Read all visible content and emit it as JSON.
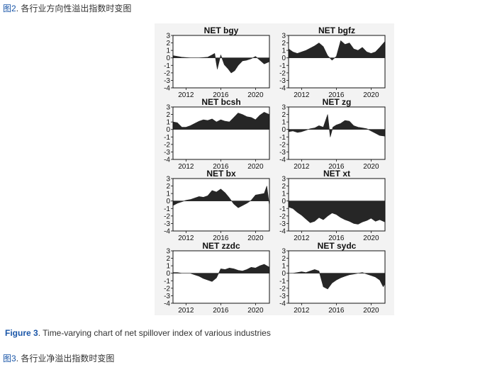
{
  "caption_top": {
    "fig_ref": "图2",
    "text": ". 各行业方向性溢出指数时变图"
  },
  "caption_en": {
    "fig_label": "Figure 3",
    "text": ". Time-varying chart of net spillover index of various industries"
  },
  "caption_bottom": {
    "fig_ref": "图3",
    "text": ". 各行业净溢出指数时变图"
  },
  "colors": {
    "fill": "#262626",
    "caption_link": "#1a56a8",
    "figure_bg": "#f3f3f3"
  },
  "chart_data": [
    {
      "type": "area",
      "title": "NET bgy",
      "x": [
        2010.5,
        2011.5,
        2012.5,
        2013.5,
        2014.5,
        2015.0,
        2015.3,
        2015.6,
        2016.0,
        2016.4,
        2016.8,
        2017.2,
        2017.6,
        2018.0,
        2018.5,
        2019.0,
        2019.5,
        2020.0,
        2020.5,
        2021.0,
        2021.6
      ],
      "values": [
        0.3,
        0.1,
        0.0,
        0.0,
        0.1,
        0.4,
        0.6,
        -1.5,
        0.4,
        -0.9,
        -1.4,
        -2.0,
        -1.7,
        -1.0,
        -0.4,
        -0.3,
        -0.1,
        0.2,
        -0.3,
        -0.8,
        -0.5
      ],
      "xlim": [
        2010.5,
        2021.6
      ],
      "ylim": [
        -4,
        3
      ],
      "xticks": [
        "2012",
        "2016",
        "2020"
      ],
      "yticks": [
        "3",
        "2",
        "1",
        "0",
        "-1",
        "-2",
        "-3",
        "-4"
      ]
    },
    {
      "type": "area",
      "title": "NET bgfz",
      "x": [
        2010.5,
        2011.0,
        2011.5,
        2012.0,
        2012.5,
        2013.0,
        2013.5,
        2014.0,
        2014.5,
        2015.0,
        2015.5,
        2016.0,
        2016.5,
        2017.0,
        2017.5,
        2018.0,
        2018.5,
        2019.0,
        2019.5,
        2020.0,
        2020.5,
        2021.0,
        2021.6
      ],
      "values": [
        1.2,
        0.8,
        0.6,
        0.8,
        1.0,
        1.3,
        1.6,
        2.0,
        1.5,
        0.3,
        -0.3,
        0.2,
        2.3,
        1.8,
        2.0,
        1.2,
        1.0,
        1.4,
        0.8,
        0.6,
        0.8,
        1.4,
        2.2
      ],
      "xlim": [
        2010.5,
        2021.6
      ],
      "ylim": [
        -4,
        3
      ],
      "xticks": [
        "2012",
        "2016",
        "2020"
      ],
      "yticks": [
        "3",
        "2",
        "1",
        "0",
        "-1",
        "-2",
        "-3",
        "-4"
      ]
    },
    {
      "type": "area",
      "title": "NET bcsh",
      "x": [
        2010.5,
        2011.0,
        2011.5,
        2012.0,
        2012.5,
        2013.0,
        2013.5,
        2014.0,
        2014.5,
        2015.0,
        2015.5,
        2016.0,
        2016.5,
        2017.0,
        2017.5,
        2018.0,
        2018.5,
        2019.0,
        2019.5,
        2020.0,
        2020.5,
        2021.0,
        2021.6
      ],
      "values": [
        1.0,
        0.9,
        0.3,
        0.3,
        0.5,
        0.8,
        1.1,
        1.3,
        1.2,
        1.4,
        1.0,
        1.3,
        1.1,
        1.0,
        1.6,
        2.2,
        2.0,
        1.7,
        1.6,
        1.3,
        1.9,
        2.3,
        2.0
      ],
      "xlim": [
        2010.5,
        2021.6
      ],
      "ylim": [
        -4,
        3
      ],
      "xticks": [
        "2012",
        "2016",
        "2020"
      ],
      "yticks": [
        "3",
        "2",
        "1",
        "0",
        "-1",
        "-2",
        "-3",
        "-4"
      ]
    },
    {
      "type": "area",
      "title": "NET zg",
      "x": [
        2010.5,
        2011.0,
        2011.5,
        2012.0,
        2012.5,
        2013.0,
        2013.5,
        2014.0,
        2014.5,
        2015.0,
        2015.3,
        2015.6,
        2016.0,
        2016.5,
        2017.0,
        2017.5,
        2018.0,
        2018.5,
        2019.0,
        2019.5,
        2020.0,
        2020.5,
        2021.0,
        2021.6
      ],
      "values": [
        -0.3,
        -0.2,
        -0.4,
        -0.3,
        -0.1,
        0.1,
        0.2,
        0.5,
        0.3,
        2.0,
        -1.0,
        0.3,
        0.6,
        0.8,
        1.2,
        1.1,
        0.5,
        0.3,
        0.2,
        0.1,
        -0.2,
        -0.5,
        -0.8,
        -0.9
      ],
      "xlim": [
        2010.5,
        2021.6
      ],
      "ylim": [
        -4,
        3
      ],
      "xticks": [
        "2012",
        "2016",
        "2020"
      ],
      "yticks": [
        "3",
        "2",
        "1",
        "0",
        "-1",
        "-2",
        "-3",
        "-4"
      ]
    },
    {
      "type": "area",
      "title": "NET bx",
      "x": [
        2010.5,
        2011.0,
        2011.5,
        2012.0,
        2012.5,
        2013.0,
        2013.5,
        2014.0,
        2014.5,
        2015.0,
        2015.5,
        2016.0,
        2016.5,
        2017.0,
        2017.5,
        2018.0,
        2018.5,
        2019.0,
        2019.5,
        2020.0,
        2020.5,
        2021.0,
        2021.3,
        2021.6
      ],
      "values": [
        -0.6,
        -0.3,
        -0.1,
        0.1,
        0.2,
        0.4,
        0.6,
        0.5,
        0.7,
        1.4,
        1.2,
        1.6,
        1.1,
        0.4,
        -0.4,
        -0.9,
        -0.6,
        -0.3,
        0.1,
        0.8,
        0.9,
        1.0,
        2.0,
        -0.6
      ],
      "xlim": [
        2010.5,
        2021.6
      ],
      "ylim": [
        -4,
        3
      ],
      "xticks": [
        "2012",
        "2016",
        "2020"
      ],
      "yticks": [
        "3",
        "2",
        "1",
        "0",
        "-1",
        "-2",
        "-3",
        "-4"
      ]
    },
    {
      "type": "area",
      "title": "NET xt",
      "x": [
        2010.5,
        2011.0,
        2011.5,
        2012.0,
        2012.5,
        2013.0,
        2013.5,
        2014.0,
        2014.5,
        2015.0,
        2015.5,
        2016.0,
        2016.5,
        2017.0,
        2017.5,
        2018.0,
        2018.5,
        2019.0,
        2019.5,
        2020.0,
        2020.5,
        2021.0,
        2021.6
      ],
      "values": [
        -0.8,
        -1.0,
        -1.5,
        -1.9,
        -2.4,
        -2.9,
        -2.7,
        -2.2,
        -2.5,
        -2.0,
        -1.6,
        -1.8,
        -2.2,
        -2.5,
        -2.7,
        -3.0,
        -3.1,
        -2.8,
        -2.6,
        -2.3,
        -2.7,
        -2.5,
        -2.8
      ],
      "xlim": [
        2010.5,
        2021.6
      ],
      "ylim": [
        -4,
        3
      ],
      "xticks": [
        "2012",
        "2016",
        "2020"
      ],
      "yticks": [
        "3",
        "2",
        "1",
        "0",
        "-1",
        "-2",
        "-3",
        "-4"
      ]
    },
    {
      "type": "area",
      "title": "NET zzdc",
      "x": [
        2010.5,
        2011.0,
        2011.5,
        2012.0,
        2012.5,
        2013.0,
        2013.5,
        2014.0,
        2014.5,
        2015.0,
        2015.5,
        2016.0,
        2016.5,
        2017.0,
        2017.5,
        2018.0,
        2018.5,
        2019.0,
        2019.5,
        2020.0,
        2020.5,
        2021.0,
        2021.6
      ],
      "values": [
        0.1,
        0.1,
        0.0,
        0.0,
        0.0,
        -0.2,
        -0.4,
        -0.7,
        -0.9,
        -1.1,
        -0.6,
        0.6,
        0.5,
        0.7,
        0.6,
        0.4,
        0.3,
        0.5,
        0.8,
        0.7,
        1.0,
        1.2,
        0.8
      ],
      "xlim": [
        2010.5,
        2021.6
      ],
      "ylim": [
        -4,
        3
      ],
      "xticks": [
        "2012",
        "2016",
        "2020"
      ],
      "yticks": [
        "3",
        "2",
        "1",
        "0",
        "-1",
        "-2",
        "-3",
        "-4"
      ]
    },
    {
      "type": "area",
      "title": "NET sydc",
      "x": [
        2010.5,
        2011.0,
        2011.5,
        2012.0,
        2012.5,
        2013.0,
        2013.5,
        2014.0,
        2014.5,
        2015.0,
        2015.5,
        2016.0,
        2016.5,
        2017.0,
        2017.5,
        2018.0,
        2018.5,
        2019.0,
        2019.5,
        2020.0,
        2020.5,
        2021.0,
        2021.4,
        2021.6
      ],
      "values": [
        0.0,
        0.0,
        0.1,
        0.2,
        0.1,
        0.3,
        0.5,
        0.3,
        -1.8,
        -2.1,
        -1.3,
        -0.9,
        -0.6,
        -0.4,
        -0.2,
        -0.1,
        0.0,
        0.1,
        -0.1,
        -0.3,
        -0.5,
        -0.9,
        -1.8,
        -1.4
      ],
      "xlim": [
        2010.5,
        2021.6
      ],
      "ylim": [
        -4,
        3
      ],
      "xticks": [
        "2012",
        "2016",
        "2020"
      ],
      "yticks": [
        "3",
        "2",
        "1",
        "0",
        "-1",
        "-2",
        "-3",
        "-4"
      ]
    }
  ]
}
